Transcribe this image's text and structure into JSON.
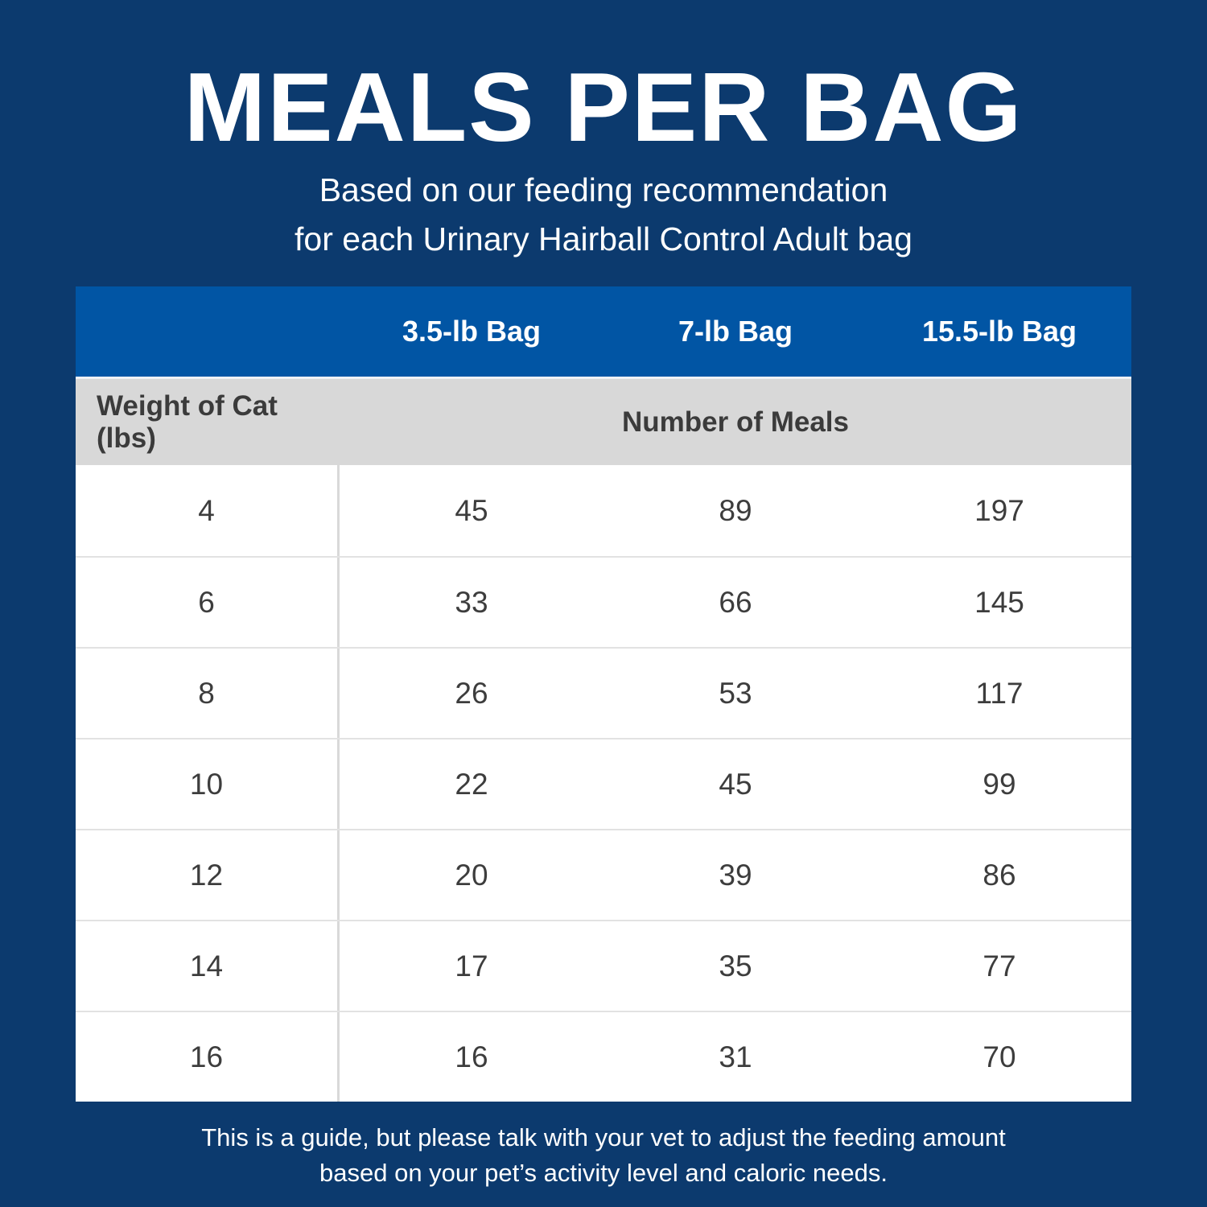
{
  "header": {
    "title": "MEALS PER BAG",
    "subtitle_line1": "Based on our feeding recommendation",
    "subtitle_line2": "for each Urinary Hairball Control Adult bag"
  },
  "table": {
    "bag_columns": [
      "3.5-lb Bag",
      "7-lb Bag",
      "15.5-lb Bag"
    ],
    "weight_header": "Weight of Cat (lbs)",
    "meals_header": "Number of Meals"
  },
  "chart_data": {
    "type": "table",
    "title": "MEALS PER BAG",
    "columns": [
      "Weight of Cat (lbs)",
      "3.5-lb Bag",
      "7-lb Bag",
      "15.5-lb Bag"
    ],
    "rows": [
      [
        "4",
        "45",
        "89",
        "197"
      ],
      [
        "6",
        "33",
        "66",
        "145"
      ],
      [
        "8",
        "26",
        "53",
        "117"
      ],
      [
        "10",
        "22",
        "45",
        "99"
      ],
      [
        "12",
        "20",
        "39",
        "86"
      ],
      [
        "14",
        "17",
        "35",
        "77"
      ],
      [
        "16",
        "16",
        "31",
        "70"
      ]
    ]
  },
  "footer": {
    "line1": "This is a guide, but please talk with your vet to adjust the feeding amount",
    "line2": "based on your pet’s activity level and caloric needs."
  },
  "colors": {
    "background_navy": "#0c3a6e",
    "header_blue": "#0155a4",
    "subheader_gray": "#d8d8d8",
    "row_white": "#ffffff",
    "divider_gray": "#e2e2e2",
    "text_dark": "#3d3d3d",
    "text_white": "#ffffff"
  }
}
